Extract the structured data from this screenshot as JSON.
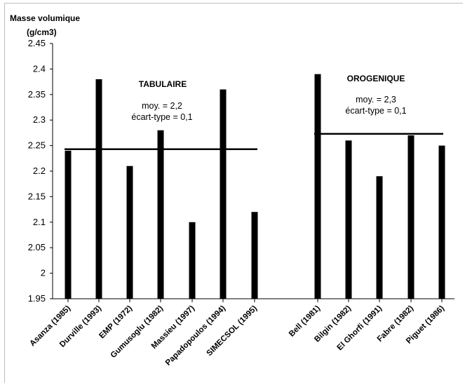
{
  "chart_data": {
    "type": "bar",
    "ylabel_line1": "Masse volumique",
    "ylabel_line2": "(g/cm3)",
    "ylim": [
      1.95,
      2.45
    ],
    "yticks": [
      "2.45",
      "2.4",
      "2.35",
      "2.3",
      "2.25",
      "2.2",
      "2.15",
      "2.1",
      "2.05",
      "2",
      "1.95"
    ],
    "grid": false,
    "groups": [
      {
        "name": "TABULAIRE",
        "mean_label": "moy. = 2,2",
        "std_label": "écart-type = 0,1",
        "mean_value": 2.243,
        "categories": [
          "Asanza (1985)",
          "Durville (1993)",
          "EMP (1972)",
          "Gumusoglu (1982)",
          "Massieu (1997)",
          "Papadopoulos (1994)",
          "SIMECSOL (1995)"
        ],
        "values": [
          2.24,
          2.38,
          2.21,
          2.28,
          2.1,
          2.36,
          2.12
        ]
      },
      {
        "name": "OROGENIQUE",
        "mean_label": "moy. = 2,3",
        "std_label": "écart-type = 0,1",
        "mean_value": 2.273,
        "categories": [
          "Bell (1981)",
          "Bilgin (1982)",
          "El Ghorfi (1991)",
          "Fabre (1982)",
          "Piguet (1986)"
        ],
        "values": [
          2.39,
          2.26,
          2.19,
          2.27,
          2.25
        ]
      }
    ]
  }
}
